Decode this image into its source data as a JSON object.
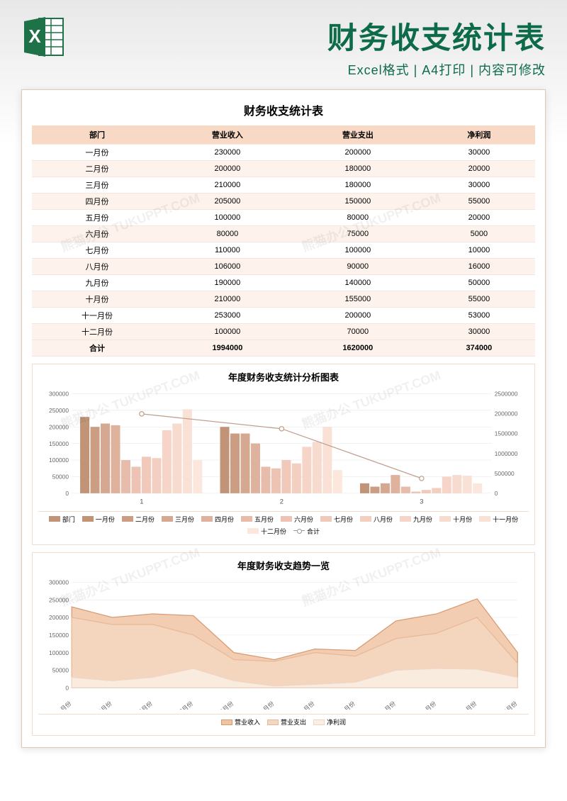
{
  "header": {
    "main_title": "财务收支统计表",
    "subtitle": "Excel格式 | A4打印 | 内容可修改",
    "title_color": "#0d6b4a",
    "subtitle_color": "#0d6b4a",
    "bg_gradient_from": "#e8e8e8",
    "bg_gradient_to": "#ffffff",
    "excel_icon": {
      "fill": "#1e7247",
      "accent": "#ffffff",
      "label": "X"
    }
  },
  "table": {
    "title": "财务收支统计表",
    "columns": [
      "部门",
      "营业收入",
      "营业支出",
      "净利润"
    ],
    "rows": [
      [
        "一月份",
        "230000",
        "200000",
        "30000"
      ],
      [
        "二月份",
        "200000",
        "180000",
        "20000"
      ],
      [
        "三月份",
        "210000",
        "180000",
        "30000"
      ],
      [
        "四月份",
        "205000",
        "150000",
        "55000"
      ],
      [
        "五月份",
        "100000",
        "80000",
        "20000"
      ],
      [
        "六月份",
        "80000",
        "75000",
        "5000"
      ],
      [
        "七月份",
        "110000",
        "100000",
        "10000"
      ],
      [
        "八月份",
        "106000",
        "90000",
        "16000"
      ],
      [
        "九月份",
        "190000",
        "140000",
        "50000"
      ],
      [
        "十月份",
        "210000",
        "155000",
        "55000"
      ],
      [
        "十一月份",
        "253000",
        "200000",
        "53000"
      ],
      [
        "十二月份",
        "100000",
        "70000",
        "30000"
      ]
    ],
    "total": [
      "合计",
      "1994000",
      "1620000",
      "374000"
    ],
    "header_bg": "#f8d9c5",
    "row_alt_bg": "#fdf3ec",
    "border_color": "#f5e6db"
  },
  "bar_chart": {
    "title": "年度财务收支统计分析图表",
    "type": "grouped-bar-with-line",
    "left_axis": {
      "min": 0,
      "max": 300000,
      "step": 50000
    },
    "right_axis": {
      "min": 0,
      "max": 2500000,
      "step": 500000
    },
    "group_labels": [
      "1",
      "2",
      "3"
    ],
    "groups": [
      [
        230000,
        200000,
        210000,
        205000,
        100000,
        80000,
        110000,
        106000,
        190000,
        210000,
        253000,
        100000
      ],
      [
        200000,
        180000,
        180000,
        150000,
        80000,
        75000,
        100000,
        90000,
        140000,
        155000,
        200000,
        70000
      ],
      [
        30000,
        20000,
        30000,
        55000,
        20000,
        5000,
        10000,
        16000,
        50000,
        55000,
        53000,
        30000
      ]
    ],
    "line_values": [
      1994000,
      1620000,
      374000
    ],
    "bar_colors": [
      "#c19477",
      "#cb9e84",
      "#d5a891",
      "#dfb29e",
      "#e8bcab",
      "#edc3b3",
      "#f0c9ba",
      "#f3cfc1",
      "#f6d5c8",
      "#f8dbcf",
      "#fae1d6",
      "#fce7dd"
    ],
    "line_color": "#c0a090",
    "grid_color": "#e5e5e5",
    "label_fontsize": 8,
    "legend_items": [
      "部门",
      "一月份",
      "二月份",
      "三月份",
      "四月份",
      "五月份",
      "六月份",
      "七月份",
      "八月份",
      "九月份",
      "十月份",
      "十一月份",
      "十二月份",
      "合计"
    ]
  },
  "area_chart": {
    "title": "年度财务收支趋势一览",
    "type": "area",
    "y_axis": {
      "min": 0,
      "max": 300000,
      "step": 50000
    },
    "x_labels": [
      "一月份",
      "二月份",
      "三月份",
      "四月份",
      "五月份",
      "六月份",
      "七月份",
      "八月份",
      "九月份",
      "十月份",
      "十一月份",
      "十二月份"
    ],
    "series": [
      {
        "name": "营业收入",
        "color": "#d89b73",
        "fill": "#f0c4a3",
        "values": [
          230000,
          200000,
          210000,
          205000,
          100000,
          80000,
          110000,
          106000,
          190000,
          210000,
          253000,
          100000
        ]
      },
      {
        "name": "营业支出",
        "color": "#e8b998",
        "fill": "#f5d6bf",
        "values": [
          200000,
          180000,
          180000,
          150000,
          80000,
          75000,
          100000,
          90000,
          140000,
          155000,
          200000,
          70000
        ]
      },
      {
        "name": "净利润",
        "color": "#f0d5c5",
        "fill": "#faeee5",
        "values": [
          30000,
          20000,
          30000,
          55000,
          20000,
          5000,
          10000,
          16000,
          50000,
          55000,
          53000,
          30000
        ]
      }
    ],
    "grid_color": "#e5e5e5",
    "label_fontsize": 8
  },
  "watermark": "熊猫办公 TUKUPPT.COM"
}
